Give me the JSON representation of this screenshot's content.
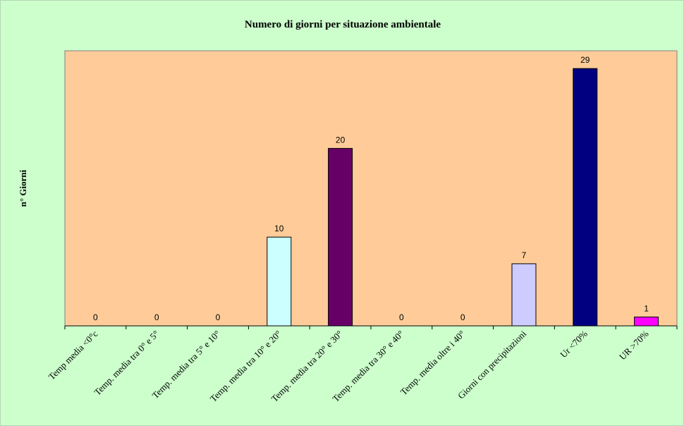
{
  "chart_data": {
    "type": "bar",
    "title": "Numero di giorni per situazione ambientale",
    "ylabel": "n° Giorni",
    "xlabel": "",
    "ylim": [
      0,
      31
    ],
    "grid": false,
    "legend": "none",
    "plot_background": "#ffcc99",
    "chart_background": "#ccffcc",
    "categories": [
      "Temp media <0°c",
      "Temp. media tra 0° e 5°",
      "Temp. media tra 5° e 10°",
      "Temp. media tra 10° e 20°",
      "Temp. media tra 20° e 30°",
      "Temp. media tra 30° e 40°",
      "Temp. media oltre i 40°",
      "Giorni con precipitazioni",
      "Ur <70%",
      "UR >70%"
    ],
    "values": [
      0,
      0,
      0,
      10,
      20,
      0,
      0,
      7,
      29,
      1
    ],
    "data_labels": [
      "0",
      "0",
      "0",
      "10",
      "20",
      "0",
      "0",
      "7",
      "29",
      "1"
    ],
    "bar_colors": [
      "#ffcc99",
      "#ffcc99",
      "#ffcc99",
      "#ccffff",
      "#660066",
      "#ffcc99",
      "#ffcc99",
      "#ccccff",
      "#000080",
      "#ff00ff"
    ]
  }
}
